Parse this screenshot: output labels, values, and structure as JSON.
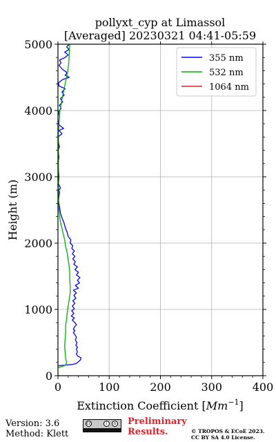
{
  "chart_data": {
    "type": "line",
    "title_line1": "pollyxt_cyp at Limassol",
    "title_line2": "[Averaged] 20230321 04:41-05:59",
    "xlabel_prefix": "Extinction Coefficient [",
    "xlabel_unit": "Mm",
    "xlabel_exp": "−1",
    "xlabel_suffix": "]",
    "ylabel": "Height (m)",
    "xlim": [
      0,
      400
    ],
    "ylim": [
      0,
      5000
    ],
    "xticks": [
      0,
      100,
      200,
      300,
      400
    ],
    "yticks": [
      0,
      1000,
      2000,
      3000,
      4000,
      5000
    ],
    "grid": true,
    "legend_position": "top-right",
    "series": [
      {
        "name": "355 nm",
        "color": "#0000ff",
        "points": [
          [
            0,
            150
          ],
          [
            15,
            160
          ],
          [
            28,
            170
          ],
          [
            36,
            185
          ],
          [
            40,
            210
          ],
          [
            44,
            240
          ],
          [
            45,
            270
          ],
          [
            38,
            300
          ],
          [
            36,
            330
          ],
          [
            38,
            360
          ],
          [
            36,
            400
          ],
          [
            38,
            430
          ],
          [
            35,
            460
          ],
          [
            37,
            500
          ],
          [
            34,
            540
          ],
          [
            36,
            580
          ],
          [
            33,
            620
          ],
          [
            30,
            650
          ],
          [
            33,
            680
          ],
          [
            30,
            700
          ],
          [
            32,
            730
          ],
          [
            36,
            770
          ],
          [
            33,
            800
          ],
          [
            28,
            840
          ],
          [
            32,
            870
          ],
          [
            26,
            900
          ],
          [
            31,
            940
          ],
          [
            27,
            980
          ],
          [
            32,
            1010
          ],
          [
            28,
            1050
          ],
          [
            33,
            1090
          ],
          [
            29,
            1130
          ],
          [
            35,
            1170
          ],
          [
            31,
            1210
          ],
          [
            36,
            1250
          ],
          [
            30,
            1290
          ],
          [
            40,
            1320
          ],
          [
            34,
            1360
          ],
          [
            42,
            1400
          ],
          [
            38,
            1440
          ],
          [
            43,
            1480
          ],
          [
            36,
            1520
          ],
          [
            40,
            1560
          ],
          [
            33,
            1600
          ],
          [
            38,
            1640
          ],
          [
            31,
            1680
          ],
          [
            34,
            1720
          ],
          [
            29,
            1760
          ],
          [
            33,
            1800
          ],
          [
            28,
            1840
          ],
          [
            32,
            1880
          ],
          [
            27,
            1920
          ],
          [
            29,
            1960
          ],
          [
            24,
            2000
          ],
          [
            25,
            2050
          ],
          [
            20,
            2100
          ],
          [
            18,
            2160
          ],
          [
            15,
            2220
          ],
          [
            12,
            2300
          ],
          [
            8,
            2380
          ],
          [
            5,
            2450
          ],
          [
            3,
            2550
          ],
          [
            1,
            2650
          ],
          [
            3,
            2760
          ],
          [
            2,
            2800
          ],
          [
            5,
            2830
          ],
          [
            1,
            2900
          ],
          [
            2,
            3000
          ],
          [
            1,
            3100
          ],
          [
            0,
            3200
          ],
          [
            2,
            3300
          ],
          [
            0,
            3400
          ],
          [
            3,
            3450
          ],
          [
            1,
            3520
          ],
          [
            0,
            3600
          ],
          [
            8,
            3650
          ],
          [
            2,
            3700
          ],
          [
            11,
            3730
          ],
          [
            4,
            3770
          ],
          [
            1,
            3800
          ],
          [
            3,
            3900
          ],
          [
            1,
            3980
          ],
          [
            6,
            4030
          ],
          [
            3,
            4080
          ],
          [
            9,
            4130
          ],
          [
            5,
            4180
          ],
          [
            12,
            4230
          ],
          [
            8,
            4280
          ],
          [
            14,
            4330
          ],
          [
            2,
            4370
          ],
          [
            1,
            4420
          ],
          [
            10,
            4470
          ],
          [
            22,
            4500
          ],
          [
            14,
            4530
          ],
          [
            18,
            4570
          ],
          [
            9,
            4620
          ],
          [
            2,
            4680
          ],
          [
            6,
            4720
          ],
          [
            3,
            4760
          ],
          [
            14,
            4800
          ],
          [
            20,
            4840
          ],
          [
            13,
            4880
          ],
          [
            22,
            4920
          ],
          [
            17,
            4960
          ],
          [
            22,
            5000
          ]
        ]
      },
      {
        "name": "532 nm",
        "color": "#00b000",
        "points": [
          [
            0,
            120
          ],
          [
            8,
            140
          ],
          [
            15,
            160
          ],
          [
            17,
            200
          ],
          [
            15,
            260
          ],
          [
            14,
            350
          ],
          [
            13,
            450
          ],
          [
            14,
            550
          ],
          [
            15,
            650
          ],
          [
            15,
            750
          ],
          [
            17,
            850
          ],
          [
            18,
            950
          ],
          [
            20,
            1050
          ],
          [
            22,
            1150
          ],
          [
            24,
            1250
          ],
          [
            24,
            1350
          ],
          [
            23,
            1450
          ],
          [
            23,
            1550
          ],
          [
            22,
            1650
          ],
          [
            20,
            1750
          ],
          [
            18,
            1850
          ],
          [
            15,
            1950
          ],
          [
            13,
            2050
          ],
          [
            10,
            2150
          ],
          [
            7,
            2250
          ],
          [
            4,
            2350
          ],
          [
            2,
            2500
          ],
          [
            1,
            2650
          ],
          [
            1,
            2850
          ],
          [
            1,
            3050
          ],
          [
            1,
            3250
          ],
          [
            1,
            3450
          ],
          [
            1,
            3650
          ],
          [
            2,
            3800
          ],
          [
            3,
            3950
          ],
          [
            6,
            4100
          ],
          [
            10,
            4250
          ],
          [
            14,
            4400
          ],
          [
            18,
            4550
          ],
          [
            21,
            4700
          ],
          [
            22,
            4850
          ],
          [
            23,
            5000
          ]
        ]
      },
      {
        "name": "1064 nm",
        "color": "#d62020",
        "points": []
      }
    ]
  },
  "footer": {
    "version": "Version: 3.6",
    "method": "Method: Klett",
    "preliminary_line1": "Preliminary",
    "preliminary_line2": "Results.",
    "license_line1": "© TROPOS & ECoE 2023.",
    "license_line2": "CC BY SA 4.0 License.",
    "cc_badge_text": "BY SA"
  }
}
